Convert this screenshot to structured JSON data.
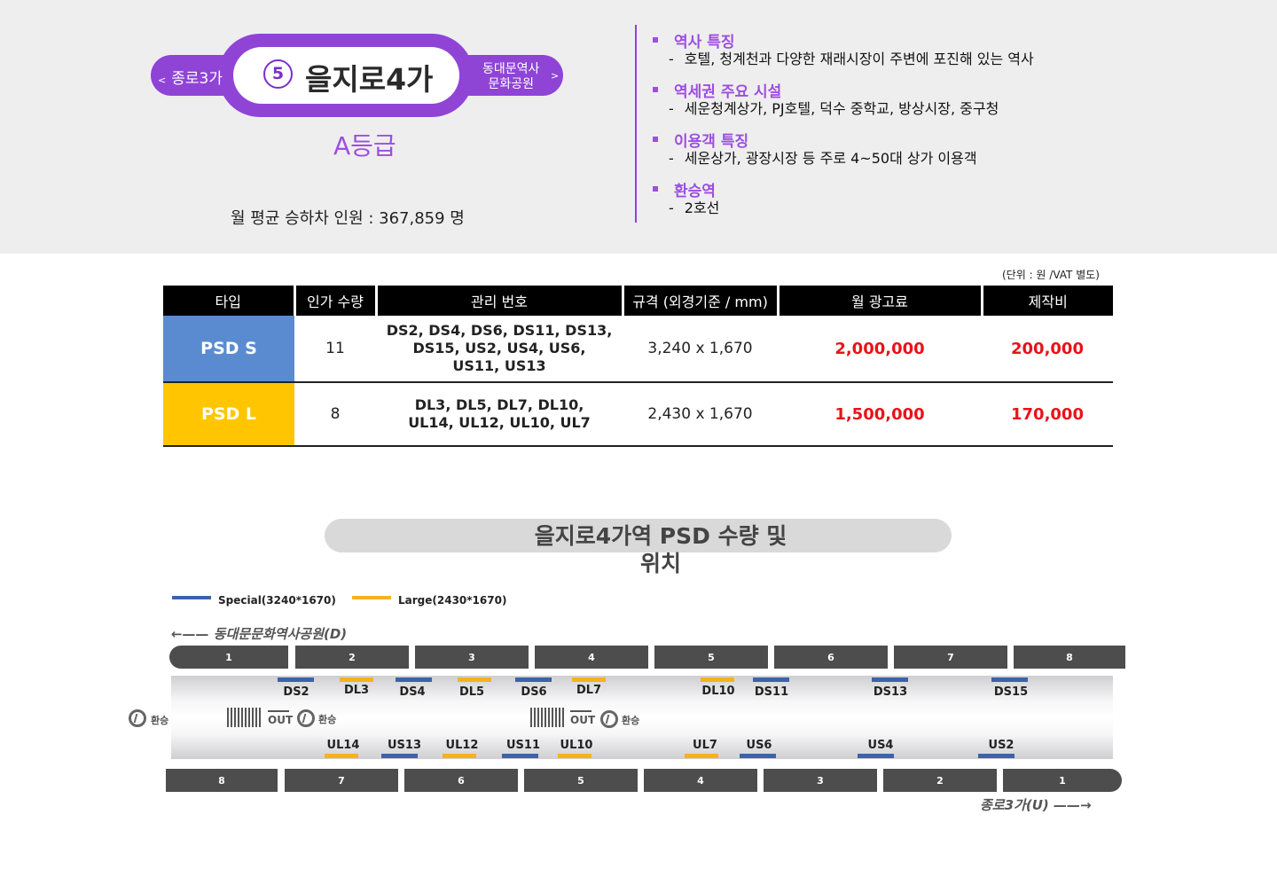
{
  "header": {
    "prev_station": "종로3가",
    "prev_arrow": "<",
    "next_station_line1": "동대문역사",
    "next_station_line2": "문화공원",
    "next_arrow": ">",
    "line_number": "5",
    "station_name": "을지로4가",
    "grade": "A등급",
    "ridership": "월 평균 승하차 인원 :  367,859 명"
  },
  "info": [
    {
      "title": "역사 특징",
      "detail": "호텔, 청계천과 다양한 재래시장이 주변에 포진해 있는 역사"
    },
    {
      "title": "역세권 주요 시설",
      "detail": "세운청계상가, PJ호텔, 덕수 중학교, 방상시장, 중구청"
    },
    {
      "title": "이용객 특징",
      "detail": "세운상가, 광장시장 등 주로 4~50대 상가 이용객"
    },
    {
      "title": "환승역",
      "detail": "2호선"
    }
  ],
  "price_table": {
    "unit_note": "(단위 : 원 /VAT 별도)",
    "headers": [
      "타입",
      "인가 수량",
      "관리 번호",
      "규격 (외경기준 / mm)",
      "월 광고료",
      "제작비"
    ],
    "rows": [
      {
        "type": "PSD S",
        "qty": "11",
        "codes_1": "DS2, DS4, DS6, DS11, DS13,",
        "codes_2": "DS15, US2, US4, US6,",
        "codes_3": "US11, US13",
        "size": "3,240 x 1,670",
        "monthly": "2,000,000",
        "production": "200,000",
        "color": "#5a8bd0"
      },
      {
        "type": "PSD L",
        "qty": "8",
        "codes_1": "DL3, DL5, DL7, DL10,",
        "codes_2": "UL14, UL12, UL10, UL7",
        "codes_3": "",
        "size": "2,430 x 1,670",
        "monthly": "1,500,000",
        "production": "170,000",
        "color": "#ffc600"
      }
    ]
  },
  "map": {
    "title_line1": "을지로4가역  PSD 수량 및",
    "title_line2": "위치",
    "legend_special": "Special(3240*1670)",
    "legend_large": "Large(2430*1670)",
    "dir_top": "동대문문화역사공원(D)",
    "dir_bottom": "종로3가(U)",
    "transfer_label": "환승",
    "out_label": "OUT",
    "top_cars": [
      "1",
      "2",
      "3",
      "4",
      "5",
      "6",
      "7",
      "8"
    ],
    "bottom_cars": [
      "8",
      "7",
      "6",
      "5",
      "4",
      "3",
      "2",
      "1"
    ],
    "top_labels": [
      "DS2",
      "DL3",
      "DS4",
      "DL5",
      "DS6",
      "DL7",
      "DL10",
      "DS11",
      "DS13",
      "DS15"
    ],
    "bottom_labels": [
      "UL14",
      "US13",
      "UL12",
      "US11",
      "UL10",
      "UL7",
      "US6",
      "US4",
      "US2"
    ],
    "colors": {
      "special": "#3d62a8",
      "large": "#f5b21e"
    }
  }
}
